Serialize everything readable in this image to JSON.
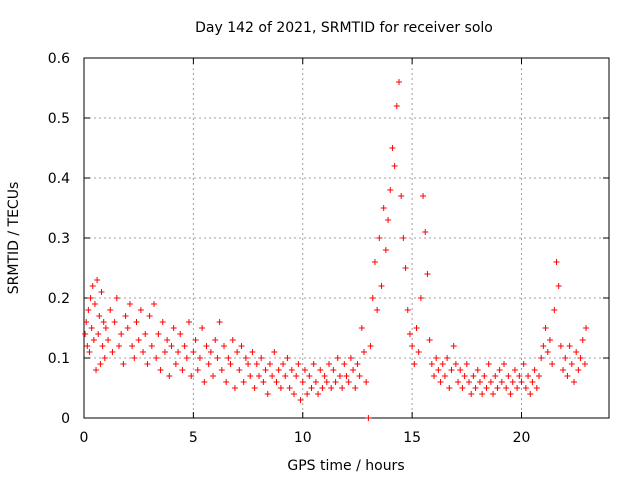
{
  "chart_data": {
    "type": "scatter",
    "title": "Day 142 of 2021, SRMTID for receiver solo",
    "xlabel": "GPS time / hours",
    "ylabel": "SRMTID / TECUs",
    "xlim": [
      0,
      24
    ],
    "ylim": [
      0,
      0.6
    ],
    "xticks": [
      0,
      5,
      10,
      15,
      20
    ],
    "yticks": [
      0,
      0.1,
      0.2,
      0.3,
      0.4,
      0.5,
      0.6
    ],
    "xtick_labels": [
      "0",
      "5",
      "10",
      "15",
      "20"
    ],
    "ytick_labels": [
      "0",
      "0.1",
      "0.2",
      "0.3",
      "0.4",
      "0.5",
      "0.6"
    ],
    "grid": true,
    "marker": "plus",
    "marker_color": "#ff0000",
    "series": [
      {
        "name": "SRMTID",
        "points": [
          [
            0.05,
            0.14
          ],
          [
            0.1,
            0.16
          ],
          [
            0.15,
            0.12
          ],
          [
            0.2,
            0.18
          ],
          [
            0.25,
            0.11
          ],
          [
            0.3,
            0.2
          ],
          [
            0.35,
            0.15
          ],
          [
            0.4,
            0.22
          ],
          [
            0.45,
            0.13
          ],
          [
            0.5,
            0.19
          ],
          [
            0.55,
            0.08
          ],
          [
            0.6,
            0.23
          ],
          [
            0.65,
            0.14
          ],
          [
            0.7,
            0.17
          ],
          [
            0.75,
            0.09
          ],
          [
            0.8,
            0.21
          ],
          [
            0.85,
            0.12
          ],
          [
            0.9,
            0.16
          ],
          [
            0.95,
            0.1
          ],
          [
            1.0,
            0.15
          ],
          [
            1.1,
            0.13
          ],
          [
            1.2,
            0.18
          ],
          [
            1.3,
            0.11
          ],
          [
            1.4,
            0.16
          ],
          [
            1.5,
            0.2
          ],
          [
            1.6,
            0.12
          ],
          [
            1.7,
            0.14
          ],
          [
            1.8,
            0.09
          ],
          [
            1.9,
            0.17
          ],
          [
            2.0,
            0.15
          ],
          [
            2.1,
            0.19
          ],
          [
            2.2,
            0.12
          ],
          [
            2.3,
            0.1
          ],
          [
            2.4,
            0.16
          ],
          [
            2.5,
            0.13
          ],
          [
            2.6,
            0.18
          ],
          [
            2.7,
            0.11
          ],
          [
            2.8,
            0.14
          ],
          [
            2.9,
            0.09
          ],
          [
            3.0,
            0.17
          ],
          [
            3.1,
            0.12
          ],
          [
            3.2,
            0.19
          ],
          [
            3.3,
            0.1
          ],
          [
            3.4,
            0.14
          ],
          [
            3.5,
            0.08
          ],
          [
            3.6,
            0.16
          ],
          [
            3.7,
            0.11
          ],
          [
            3.8,
            0.13
          ],
          [
            3.9,
            0.07
          ],
          [
            4.0,
            0.12
          ],
          [
            4.1,
            0.15
          ],
          [
            4.2,
            0.09
          ],
          [
            4.3,
            0.11
          ],
          [
            4.4,
            0.14
          ],
          [
            4.5,
            0.08
          ],
          [
            4.6,
            0.12
          ],
          [
            4.7,
            0.1
          ],
          [
            4.8,
            0.16
          ],
          [
            4.9,
            0.07
          ],
          [
            5.0,
            0.11
          ],
          [
            5.1,
            0.13
          ],
          [
            5.2,
            0.08
          ],
          [
            5.3,
            0.1
          ],
          [
            5.4,
            0.15
          ],
          [
            5.5,
            0.06
          ],
          [
            5.6,
            0.12
          ],
          [
            5.7,
            0.09
          ],
          [
            5.8,
            0.11
          ],
          [
            5.9,
            0.07
          ],
          [
            6.0,
            0.13
          ],
          [
            6.1,
            0.1
          ],
          [
            6.2,
            0.16
          ],
          [
            6.3,
            0.08
          ],
          [
            6.4,
            0.12
          ],
          [
            6.5,
            0.06
          ],
          [
            6.6,
            0.1
          ],
          [
            6.7,
            0.09
          ],
          [
            6.8,
            0.13
          ],
          [
            6.9,
            0.05
          ],
          [
            7.0,
            0.11
          ],
          [
            7.1,
            0.08
          ],
          [
            7.2,
            0.12
          ],
          [
            7.3,
            0.06
          ],
          [
            7.4,
            0.1
          ],
          [
            7.5,
            0.09
          ],
          [
            7.6,
            0.07
          ],
          [
            7.7,
            0.11
          ],
          [
            7.8,
            0.05
          ],
          [
            7.9,
            0.09
          ],
          [
            8.0,
            0.07
          ],
          [
            8.1,
            0.1
          ],
          [
            8.2,
            0.06
          ],
          [
            8.3,
            0.08
          ],
          [
            8.4,
            0.04
          ],
          [
            8.5,
            0.09
          ],
          [
            8.6,
            0.07
          ],
          [
            8.7,
            0.11
          ],
          [
            8.8,
            0.06
          ],
          [
            8.9,
            0.08
          ],
          [
            9.0,
            0.05
          ],
          [
            9.1,
            0.09
          ],
          [
            9.2,
            0.07
          ],
          [
            9.3,
            0.1
          ],
          [
            9.4,
            0.05
          ],
          [
            9.5,
            0.08
          ],
          [
            9.6,
            0.04
          ],
          [
            9.7,
            0.07
          ],
          [
            9.8,
            0.09
          ],
          [
            9.9,
            0.03
          ],
          [
            10.0,
            0.06
          ],
          [
            10.1,
            0.08
          ],
          [
            10.2,
            0.04
          ],
          [
            10.3,
            0.07
          ],
          [
            10.4,
            0.05
          ],
          [
            10.5,
            0.09
          ],
          [
            10.6,
            0.06
          ],
          [
            10.7,
            0.04
          ],
          [
            10.8,
            0.08
          ],
          [
            10.9,
            0.05
          ],
          [
            11.0,
            0.07
          ],
          [
            11.1,
            0.06
          ],
          [
            11.2,
            0.09
          ],
          [
            11.3,
            0.05
          ],
          [
            11.4,
            0.08
          ],
          [
            11.5,
            0.06
          ],
          [
            11.6,
            0.1
          ],
          [
            11.7,
            0.07
          ],
          [
            11.8,
            0.05
          ],
          [
            11.9,
            0.09
          ],
          [
            12.0,
            0.07
          ],
          [
            12.1,
            0.06
          ],
          [
            12.2,
            0.1
          ],
          [
            12.3,
            0.08
          ],
          [
            12.4,
            0.05
          ],
          [
            12.5,
            0.09
          ],
          [
            12.6,
            0.07
          ],
          [
            12.7,
            0.15
          ],
          [
            12.8,
            0.11
          ],
          [
            12.9,
            0.06
          ],
          [
            13.0,
            0.0
          ],
          [
            13.1,
            0.12
          ],
          [
            13.2,
            0.2
          ],
          [
            13.3,
            0.26
          ],
          [
            13.4,
            0.18
          ],
          [
            13.5,
            0.3
          ],
          [
            13.6,
            0.22
          ],
          [
            13.7,
            0.35
          ],
          [
            13.8,
            0.28
          ],
          [
            13.9,
            0.33
          ],
          [
            14.0,
            0.38
          ],
          [
            14.1,
            0.45
          ],
          [
            14.2,
            0.42
          ],
          [
            14.3,
            0.52
          ],
          [
            14.4,
            0.56
          ],
          [
            14.5,
            0.37
          ],
          [
            14.6,
            0.3
          ],
          [
            14.7,
            0.25
          ],
          [
            14.8,
            0.18
          ],
          [
            14.9,
            0.14
          ],
          [
            15.0,
            0.12
          ],
          [
            15.1,
            0.09
          ],
          [
            15.2,
            0.15
          ],
          [
            15.3,
            0.11
          ],
          [
            15.4,
            0.2
          ],
          [
            15.5,
            0.37
          ],
          [
            15.6,
            0.31
          ],
          [
            15.7,
            0.24
          ],
          [
            15.8,
            0.13
          ],
          [
            15.9,
            0.09
          ],
          [
            16.0,
            0.07
          ],
          [
            16.1,
            0.1
          ],
          [
            16.2,
            0.08
          ],
          [
            16.3,
            0.06
          ],
          [
            16.4,
            0.09
          ],
          [
            16.5,
            0.07
          ],
          [
            16.6,
            0.1
          ],
          [
            16.7,
            0.05
          ],
          [
            16.8,
            0.08
          ],
          [
            16.9,
            0.12
          ],
          [
            17.0,
            0.09
          ],
          [
            17.1,
            0.06
          ],
          [
            17.2,
            0.08
          ],
          [
            17.3,
            0.05
          ],
          [
            17.4,
            0.07
          ],
          [
            17.5,
            0.09
          ],
          [
            17.6,
            0.06
          ],
          [
            17.7,
            0.04
          ],
          [
            17.8,
            0.07
          ],
          [
            17.9,
            0.05
          ],
          [
            18.0,
            0.08
          ],
          [
            18.1,
            0.06
          ],
          [
            18.2,
            0.04
          ],
          [
            18.3,
            0.07
          ],
          [
            18.4,
            0.05
          ],
          [
            18.5,
            0.09
          ],
          [
            18.6,
            0.06
          ],
          [
            18.7,
            0.04
          ],
          [
            18.8,
            0.07
          ],
          [
            18.9,
            0.05
          ],
          [
            19.0,
            0.08
          ],
          [
            19.1,
            0.06
          ],
          [
            19.2,
            0.09
          ],
          [
            19.3,
            0.05
          ],
          [
            19.4,
            0.07
          ],
          [
            19.5,
            0.04
          ],
          [
            19.6,
            0.06
          ],
          [
            19.7,
            0.08
          ],
          [
            19.8,
            0.05
          ],
          [
            19.9,
            0.07
          ],
          [
            20.0,
            0.06
          ],
          [
            20.1,
            0.09
          ],
          [
            20.2,
            0.05
          ],
          [
            20.3,
            0.07
          ],
          [
            20.4,
            0.04
          ],
          [
            20.5,
            0.06
          ],
          [
            20.6,
            0.08
          ],
          [
            20.7,
            0.05
          ],
          [
            20.8,
            0.07
          ],
          [
            20.9,
            0.1
          ],
          [
            21.0,
            0.12
          ],
          [
            21.1,
            0.15
          ],
          [
            21.2,
            0.11
          ],
          [
            21.3,
            0.13
          ],
          [
            21.4,
            0.09
          ],
          [
            21.5,
            0.18
          ],
          [
            21.6,
            0.26
          ],
          [
            21.7,
            0.22
          ],
          [
            21.8,
            0.12
          ],
          [
            21.9,
            0.08
          ],
          [
            22.0,
            0.1
          ],
          [
            22.1,
            0.07
          ],
          [
            22.2,
            0.12
          ],
          [
            22.3,
            0.09
          ],
          [
            22.4,
            0.06
          ],
          [
            22.5,
            0.11
          ],
          [
            22.6,
            0.08
          ],
          [
            22.7,
            0.1
          ],
          [
            22.8,
            0.13
          ],
          [
            22.9,
            0.09
          ],
          [
            22.95,
            0.15
          ]
        ]
      }
    ]
  }
}
